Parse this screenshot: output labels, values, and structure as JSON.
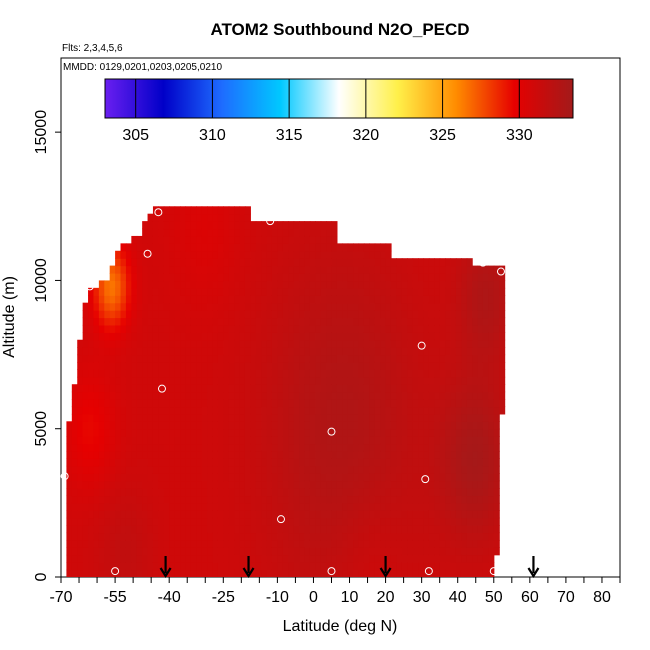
{
  "chart_data": {
    "type": "heatmap",
    "title": "ATOM2 Southbound N2O_PECD",
    "flights_text": "Flts: 2,3,4,5,6",
    "dates_text": "MMDD: 0129,0201,0203,0205,0210",
    "xlabel": "Latitude (deg N)",
    "ylabel": "Altitude (m)",
    "xlim": [
      -70,
      85
    ],
    "ylim": [
      0,
      17500
    ],
    "x_ticks": [
      -70,
      -55,
      -40,
      -25,
      -10,
      0,
      10,
      20,
      30,
      40,
      50,
      60,
      70,
      80
    ],
    "x_tick_labels": [
      "-70",
      "-55",
      "-40",
      "-25",
      "-10",
      "0",
      "10",
      "20",
      "30",
      "40",
      "50",
      "60",
      "70",
      "80"
    ],
    "y_ticks": [
      0,
      5000,
      10000,
      15000
    ],
    "y_tick_labels": [
      "0",
      "5000",
      "10000",
      "15000"
    ],
    "colorbar": {
      "min": 303,
      "max": 333.5,
      "ticks": [
        305,
        310,
        315,
        320,
        325,
        330
      ],
      "tick_labels": [
        "305",
        "310",
        "315",
        "320",
        "325",
        "330"
      ],
      "colors": [
        "#6a1ff0",
        "#0000c8",
        "#1e6cff",
        "#00c8ff",
        "#ffffff",
        "#fff04a",
        "#ff8c00",
        "#e60000",
        "#a31a1a"
      ]
    },
    "field": {
      "background_value": 331,
      "anomalies": [
        {
          "lat": -56,
          "alt": 9800,
          "value": 326.5,
          "radius": 5
        },
        {
          "lat": -62,
          "alt": 5000,
          "value": 329.5,
          "radius": 7
        },
        {
          "lat": -52,
          "alt": 900,
          "value": 331.8,
          "radius": 8
        },
        {
          "lat": 8,
          "alt": 5000,
          "value": 332.8,
          "radius": 22
        },
        {
          "lat": 45,
          "alt": 4000,
          "value": 333.2,
          "radius": 10
        },
        {
          "lat": 48,
          "alt": 9500,
          "value": 332.8,
          "radius": 8
        },
        {
          "lat": 15,
          "alt": 600,
          "value": 330.4,
          "radius": 10
        },
        {
          "lat": -30,
          "alt": 11800,
          "value": 330.3,
          "radius": 10
        }
      ]
    },
    "coverage_outline": [
      [
        -68,
        0
      ],
      [
        -68,
        5000
      ],
      [
        -63,
        9600
      ],
      [
        -57,
        10000
      ],
      [
        -55,
        10900
      ],
      [
        -48,
        11600
      ],
      [
        -44,
        12500
      ],
      [
        -18,
        12500
      ],
      [
        -18,
        12000
      ],
      [
        -13,
        12000
      ],
      [
        -13,
        11900
      ],
      [
        -2,
        11900
      ],
      [
        7,
        11900
      ],
      [
        7,
        11300
      ],
      [
        22,
        11300
      ],
      [
        22,
        10800
      ],
      [
        44,
        10800
      ],
      [
        44,
        10500
      ],
      [
        53,
        10500
      ],
      [
        53,
        8000
      ],
      [
        52,
        4500
      ],
      [
        50.5,
        0
      ]
    ],
    "sample_points": [
      {
        "lat": -43,
        "alt": 12300
      },
      {
        "lat": -12,
        "alt": 12000
      },
      {
        "lat": -46,
        "alt": 10900
      },
      {
        "lat": -62,
        "alt": 9800
      },
      {
        "lat": 47,
        "alt": 10600
      },
      {
        "lat": 52,
        "alt": 10300
      },
      {
        "lat": 30,
        "alt": 7800
      },
      {
        "lat": -42,
        "alt": 6350
      },
      {
        "lat": 5,
        "alt": 4900
      },
      {
        "lat": -69,
        "alt": 3400
      },
      {
        "lat": 31,
        "alt": 3300
      },
      {
        "lat": -9,
        "alt": 1950
      },
      {
        "lat": -55,
        "alt": 200
      },
      {
        "lat": 5,
        "alt": 200
      },
      {
        "lat": 32,
        "alt": 200
      },
      {
        "lat": 50,
        "alt": 200
      }
    ],
    "markers": {
      "type": "down-arrow",
      "lat": [
        -41,
        -18,
        20,
        61
      ]
    },
    "grid": false,
    "legend": "colorbar top"
  }
}
